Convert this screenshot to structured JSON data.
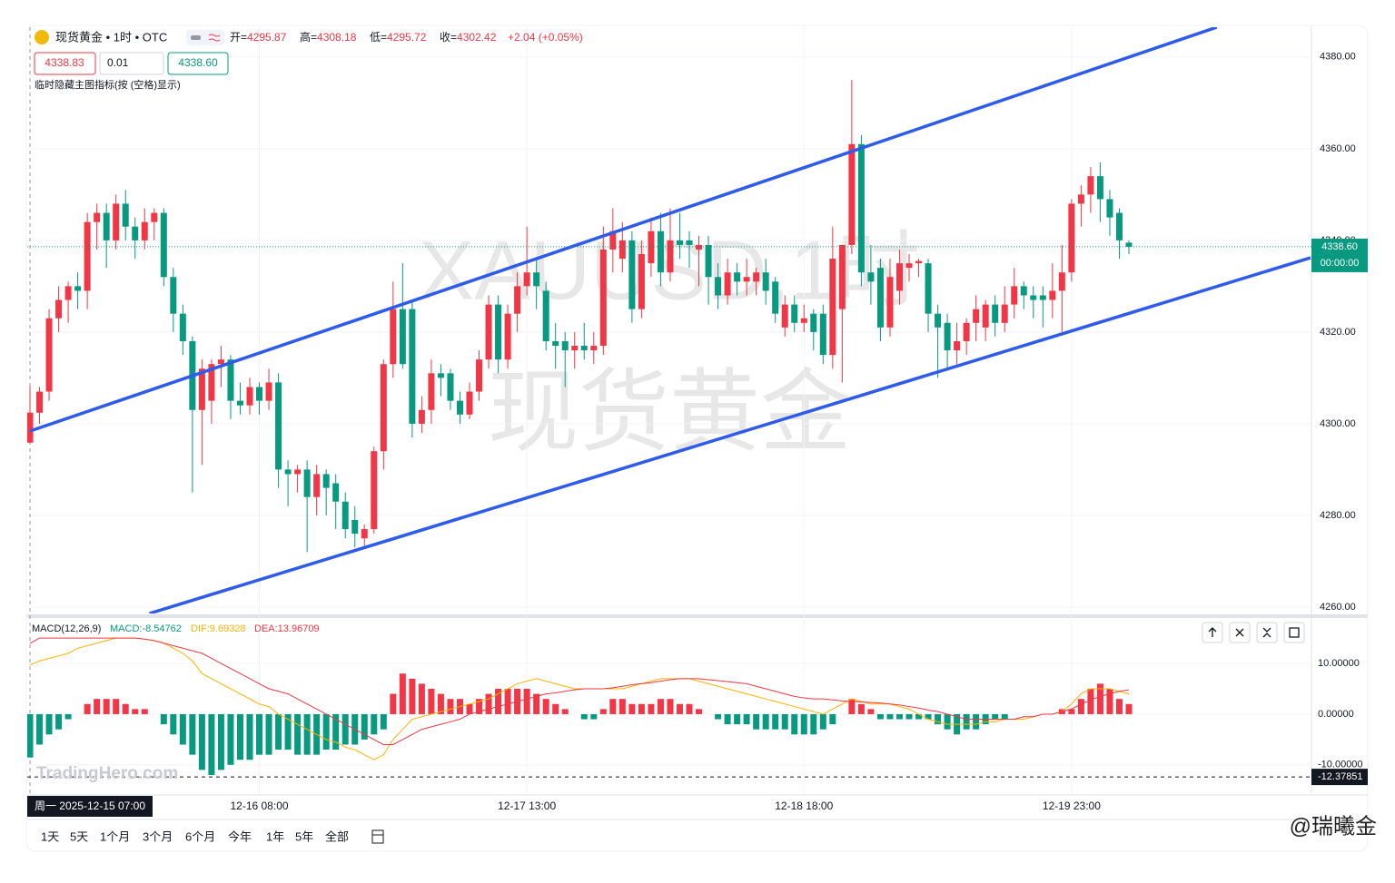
{
  "header": {
    "symbol": "现货黄金 • 1时 • OTC",
    "ohlc": [
      {
        "k": "开=",
        "v": "4295.87"
      },
      {
        "k": "高=",
        "v": "4308.18"
      },
      {
        "k": "低=",
        "v": "4295.72"
      },
      {
        "k": "收=",
        "v": "4302.42"
      }
    ],
    "change": "+2.04 (+0.05%)",
    "sell": "4338.83",
    "qty": "0.01",
    "buy": "4338.60",
    "hint": "临时隐藏主图指标(按 (空格)显示)"
  },
  "watermark": [
    "XAUUSD,1时",
    "现货黄金"
  ],
  "source": "TradingHero.com",
  "credit": "@瑞曦金",
  "toolbar": [
    "1天",
    "5天",
    "1个月",
    "3个月",
    "6个月",
    "今年",
    "1年",
    "5年",
    "全部"
  ],
  "chart_data": [
    {
      "type": "candlestick",
      "up_color": "#f23645",
      "down_color": "#089981",
      "categories": [
        "周一 2025-12-15  07:00",
        null,
        null,
        null,
        null,
        null,
        null,
        null,
        null,
        null,
        null,
        null,
        null,
        null,
        null,
        null,
        null,
        null,
        null,
        null,
        null,
        null,
        null,
        null,
        "12-16 08:00",
        null,
        null,
        null,
        null,
        null,
        null,
        null,
        null,
        null,
        null,
        null,
        null,
        null,
        null,
        null,
        null,
        null,
        null,
        null,
        null,
        null,
        null,
        null,
        null,
        null,
        null,
        null,
        "12-17 13:00",
        null,
        null,
        null,
        null,
        null,
        null,
        null,
        null,
        null,
        null,
        null,
        null,
        null,
        null,
        null,
        null,
        null,
        null,
        null,
        null,
        null,
        null,
        null,
        null,
        null,
        null,
        null,
        null,
        "12-18 18:00",
        null,
        null,
        null,
        null,
        null,
        null,
        null,
        null,
        null,
        null,
        null,
        null,
        null,
        null,
        null,
        null,
        null,
        null,
        null,
        null,
        null,
        null,
        null,
        null,
        null,
        null,
        null,
        "12-19 23:00",
        null,
        null,
        null,
        null,
        null,
        null
      ],
      "ohlc": [
        [
          4295.87,
          4308.18,
          4295.72,
          4302.42
        ],
        [
          4302.4,
          4308,
          4300,
          4307
        ],
        [
          4307,
          4325,
          4305,
          4323
        ],
        [
          4323,
          4330,
          4320,
          4327
        ],
        [
          4327,
          4331,
          4322,
          4330
        ],
        [
          4330,
          4333,
          4325,
          4329
        ],
        [
          4329,
          4346,
          4325,
          4344
        ],
        [
          4344,
          4348,
          4338,
          4346
        ],
        [
          4346,
          4348,
          4334,
          4340
        ],
        [
          4340,
          4350,
          4338,
          4348
        ],
        [
          4348,
          4351,
          4340,
          4343
        ],
        [
          4343,
          4345,
          4336,
          4340
        ],
        [
          4340,
          4347,
          4338,
          4344
        ],
        [
          4344,
          4347,
          4340,
          4346
        ],
        [
          4346,
          4347,
          4330,
          4332
        ],
        [
          4332,
          4334,
          4320,
          4324
        ],
        [
          4324,
          4326,
          4315,
          4318
        ],
        [
          4318,
          4319,
          4285,
          4303
        ],
        [
          4303,
          4314,
          4291,
          4312
        ],
        [
          4305,
          4314,
          4300,
          4313
        ],
        [
          4313,
          4317,
          4308,
          4314
        ],
        [
          4314,
          4315,
          4301,
          4305
        ],
        [
          4305,
          4309,
          4302,
          4304
        ],
        [
          4304,
          4310,
          4302,
          4308
        ],
        [
          4308,
          4309,
          4302,
          4305
        ],
        [
          4305,
          4312,
          4303,
          4309
        ],
        [
          4309,
          4311,
          4286,
          4290
        ],
        [
          4290,
          4292,
          4282,
          4289
        ],
        [
          4289,
          4291,
          4285,
          4290
        ],
        [
          4290,
          4292,
          4272,
          4284
        ],
        [
          4284,
          4291,
          4280,
          4289
        ],
        [
          4289,
          4290,
          4280,
          4286
        ],
        [
          4287,
          4289,
          4277,
          4283
        ],
        [
          4283,
          4285,
          4275,
          4277
        ],
        [
          4279,
          4282,
          4273,
          4276
        ],
        [
          4275,
          4278,
          4273,
          4277
        ],
        [
          4277,
          4295,
          4276,
          4294
        ],
        [
          4294,
          4314,
          4290,
          4313
        ],
        [
          4313,
          4331,
          4310,
          4325
        ],
        [
          4325,
          4335,
          4312,
          4313
        ],
        [
          4325,
          4327,
          4297,
          4300
        ],
        [
          4300,
          4306,
          4298,
          4303
        ],
        [
          4303,
          4314,
          4300,
          4311
        ],
        [
          4311,
          4313,
          4306,
          4310
        ],
        [
          4311,
          4312,
          4303,
          4305
        ],
        [
          4305,
          4307,
          4300,
          4302
        ],
        [
          4302,
          4309,
          4301,
          4307
        ],
        [
          4307,
          4316,
          4305,
          4314
        ],
        [
          4314,
          4328,
          4312,
          4326
        ],
        [
          4326,
          4328,
          4311,
          4314
        ],
        [
          4314,
          4326,
          4312,
          4324
        ],
        [
          4324,
          4333,
          4320,
          4330
        ],
        [
          4330,
          4343,
          4328,
          4333
        ],
        [
          4333,
          4336,
          4325,
          4330
        ],
        [
          4329,
          4331,
          4316,
          4318
        ],
        [
          4318,
          4322,
          4312,
          4317
        ],
        [
          4318,
          4320,
          4308,
          4316
        ],
        [
          4316,
          4320,
          4312,
          4317
        ],
        [
          4317,
          4322,
          4314,
          4316
        ],
        [
          4316,
          4320,
          4313,
          4317
        ],
        [
          4317,
          4343,
          4315,
          4338
        ],
        [
          4338,
          4347,
          4333,
          4342
        ],
        [
          4336,
          4344,
          4333,
          4340
        ],
        [
          4340,
          4342,
          4322,
          4325
        ],
        [
          4325,
          4340,
          4323,
          4337
        ],
        [
          4335,
          4345,
          4332,
          4342
        ],
        [
          4342,
          4346,
          4330,
          4333
        ],
        [
          4333,
          4347,
          4331,
          4340
        ],
        [
          4340,
          4346,
          4336,
          4339
        ],
        [
          4340,
          4342,
          4334,
          4339
        ],
        [
          4338,
          4341,
          4330,
          4339
        ],
        [
          4339,
          4341,
          4326,
          4332
        ],
        [
          4332,
          4335,
          4325,
          4328
        ],
        [
          4328,
          4336,
          4326,
          4333
        ],
        [
          4333,
          4335,
          4328,
          4331
        ],
        [
          4331,
          4336,
          4328,
          4332
        ],
        [
          4331,
          4334,
          4328,
          4333
        ],
        [
          4333,
          4336,
          4326,
          4329
        ],
        [
          4331,
          4332,
          4322,
          4324
        ],
        [
          4321,
          4328,
          4319,
          4326
        ],
        [
          4326,
          4328,
          4320,
          4322
        ],
        [
          4322,
          4326,
          4320,
          4323
        ],
        [
          4324,
          4325,
          4316,
          4320
        ],
        [
          4324,
          4326,
          4313,
          4315
        ],
        [
          4315,
          4343,
          4312,
          4336
        ],
        [
          4325,
          4339,
          4309,
          4339
        ],
        [
          4339,
          4375,
          4337,
          4361
        ],
        [
          4361,
          4363,
          4330,
          4333
        ],
        [
          4333,
          4339,
          4326,
          4331
        ],
        [
          4334,
          4336,
          4318,
          4321
        ],
        [
          4321,
          4336,
          4319,
          4332
        ],
        [
          4329,
          4338,
          4326,
          4335
        ],
        [
          4334,
          4337,
          4331,
          4335
        ],
        [
          4335,
          4336,
          4332,
          4335.5
        ],
        [
          4335,
          4336,
          4320,
          4324
        ],
        [
          4324,
          4326,
          4310,
          4321
        ],
        [
          4322,
          4324,
          4312,
          4316
        ],
        [
          4316,
          4322,
          4313,
          4318
        ],
        [
          4318,
          4323,
          4315,
          4322
        ],
        [
          4322,
          4328,
          4318,
          4325
        ],
        [
          4321,
          4327,
          4318,
          4326
        ],
        [
          4326,
          4328,
          4319,
          4322
        ],
        [
          4322,
          4330,
          4320,
          4326
        ],
        [
          4326,
          4334,
          4323,
          4330
        ],
        [
          4330,
          4331,
          4325,
          4328
        ],
        [
          4328,
          4330,
          4323,
          4327
        ],
        [
          4328,
          4330,
          4321,
          4327
        ],
        [
          4327,
          4335,
          4323,
          4329
        ],
        [
          4329,
          4339,
          4320,
          4333
        ],
        [
          4333,
          4349,
          4331,
          4348
        ],
        [
          4348,
          4352,
          4343,
          4350
        ],
        [
          4350,
          4356,
          4346,
          4354
        ],
        [
          4354,
          4357,
          4344,
          4349
        ],
        [
          4349,
          4351,
          4341,
          4345
        ],
        [
          4346,
          4347,
          4336,
          4340
        ],
        [
          4339.5,
          4340,
          4337,
          4338.6
        ]
      ],
      "ylim": [
        4258.6,
        4386.5
      ],
      "yticks": [
        {
          "value": 4260,
          "label": "4260.00"
        },
        {
          "value": 4280,
          "label": "4280.00"
        },
        {
          "value": 4300,
          "label": "4300.00"
        },
        {
          "value": 4320,
          "label": "4320.00"
        },
        {
          "value": 4340,
          "label": "4340.00"
        },
        {
          "value": 4360,
          "label": "4360.00"
        },
        {
          "value": 4380,
          "label": "4380.00"
        }
      ],
      "grid": true,
      "last_price": {
        "value": 4338.6,
        "label": "4338.60"
      },
      "countdown": "00:00:00",
      "last_color": "#089981",
      "trend_lines": [
        {
          "x": [
            0,
            124.2
          ],
          "y": [
            4298.4,
            4386.5
          ]
        },
        {
          "x": [
            12.5,
            134
          ],
          "y": [
            4258.6,
            4336.2
          ]
        }
      ],
      "trend_color": "#2e5bea"
    },
    {
      "type": "macd",
      "legend": [
        "MACD(12,26,9)",
        "MACD:-8.54762",
        "DIF:9.69328",
        "DEA:13.96709"
      ],
      "pos_color": "#f23645",
      "neg_color": "#089981",
      "series": [
        {
          "name": "MACD",
          "values": [
            -8.54762,
            -6,
            -4,
            -3,
            -1,
            0,
            2,
            3,
            3,
            3,
            2,
            1,
            1,
            0,
            -2,
            -4,
            -6,
            -8,
            -11,
            -12,
            -11,
            -10,
            -9,
            -9,
            -8,
            -8,
            -7,
            -7,
            -8,
            -8,
            -8,
            -7,
            -7,
            -6,
            -6,
            -5,
            -4,
            -3,
            4,
            8,
            7,
            6,
            5,
            4,
            3,
            3,
            2,
            3,
            4,
            5,
            5,
            5,
            5,
            4,
            3,
            2,
            1,
            0,
            -1,
            -1,
            1,
            3,
            3,
            2,
            2,
            2,
            3,
            3,
            2,
            2,
            1,
            0,
            -1,
            -2,
            -2,
            -2,
            -3,
            -3,
            -3,
            -3,
            -4,
            -4,
            -4,
            -3,
            -2,
            0,
            3,
            2,
            1,
            -1,
            -1,
            -1,
            -1,
            -1,
            -1,
            -2,
            -3,
            -4,
            -3,
            -3,
            -2,
            -1,
            -1,
            0,
            0,
            0,
            0,
            0,
            1,
            1,
            3,
            5,
            6,
            5,
            3,
            2
          ]
        },
        {
          "name": "DIF",
          "color": "#ffb300",
          "values": [
            9.69328,
            10.5,
            11,
            11.5,
            12,
            13,
            13.5,
            14,
            14.5,
            15,
            15,
            15,
            14.8,
            14.5,
            14,
            13,
            12,
            10.5,
            8,
            7,
            6,
            5,
            4,
            3,
            2,
            1.5,
            0,
            -1,
            -2,
            -3,
            -4,
            -5,
            -5.5,
            -6.5,
            -7,
            -8,
            -9,
            -8,
            -5,
            -3,
            -1,
            -0.5,
            0,
            0.5,
            1,
            1.5,
            2,
            2.5,
            3,
            4,
            5,
            6,
            6.5,
            7,
            6.5,
            6,
            5.5,
            5,
            5,
            5,
            5,
            5,
            5,
            5.5,
            6,
            6.5,
            7,
            7,
            7,
            7,
            6.5,
            6,
            5.5,
            5,
            4.5,
            4,
            3.5,
            3,
            2.5,
            2,
            1.5,
            1,
            0.5,
            0,
            1,
            2,
            3,
            2.5,
            2,
            2,
            2,
            1.5,
            1,
            0,
            -1,
            -1.5,
            -2,
            -2,
            -2,
            -2,
            -1.5,
            -1.5,
            -1,
            -1,
            -1,
            -0.5,
            0,
            0,
            0.5,
            2,
            4,
            5,
            5,
            5,
            4.5,
            4
          ]
        },
        {
          "name": "DEA",
          "color": "#f23645",
          "values": [
            13.96709,
            15,
            15,
            15,
            15,
            15,
            15,
            15,
            15,
            15,
            15,
            15,
            14.8,
            14.5,
            14,
            13.5,
            13,
            12.5,
            12,
            11,
            10,
            9,
            8,
            7,
            6,
            5,
            4.5,
            4,
            3,
            2,
            1,
            0,
            -1,
            -2,
            -3,
            -4,
            -5,
            -6,
            -6,
            -5,
            -4,
            -3,
            -2.5,
            -2,
            -1.5,
            -1,
            0,
            0.5,
            1,
            1.5,
            2,
            2.5,
            3,
            3.5,
            4,
            4.2,
            4.5,
            4.8,
            5,
            5,
            5,
            5.2,
            5.5,
            5.8,
            6,
            6.2,
            6.5,
            6.8,
            7,
            7,
            7,
            6.8,
            6.6,
            6.4,
            6.2,
            6,
            5.5,
            5,
            4.5,
            4,
            3.5,
            3.2,
            3,
            3,
            2.8,
            2.6,
            2.5,
            2.4,
            2.3,
            2.2,
            2,
            1.8,
            1.5,
            1.2,
            0.8,
            0.5,
            0,
            -0.5,
            -1,
            -1,
            -1,
            -1,
            -1,
            -1,
            -0.5,
            -0.5,
            0,
            0,
            0.5,
            1,
            2,
            2.8,
            3.5,
            4,
            4.5,
            4.8
          ]
        }
      ],
      "ylim": [
        -15.4,
        18.6
      ],
      "yticks": [
        {
          "value": -10,
          "label": "-10.00000"
        },
        {
          "value": 0,
          "label": "0.00000"
        },
        {
          "value": 10,
          "label": "10.00000"
        }
      ],
      "crosshair": -12.37851
    }
  ]
}
